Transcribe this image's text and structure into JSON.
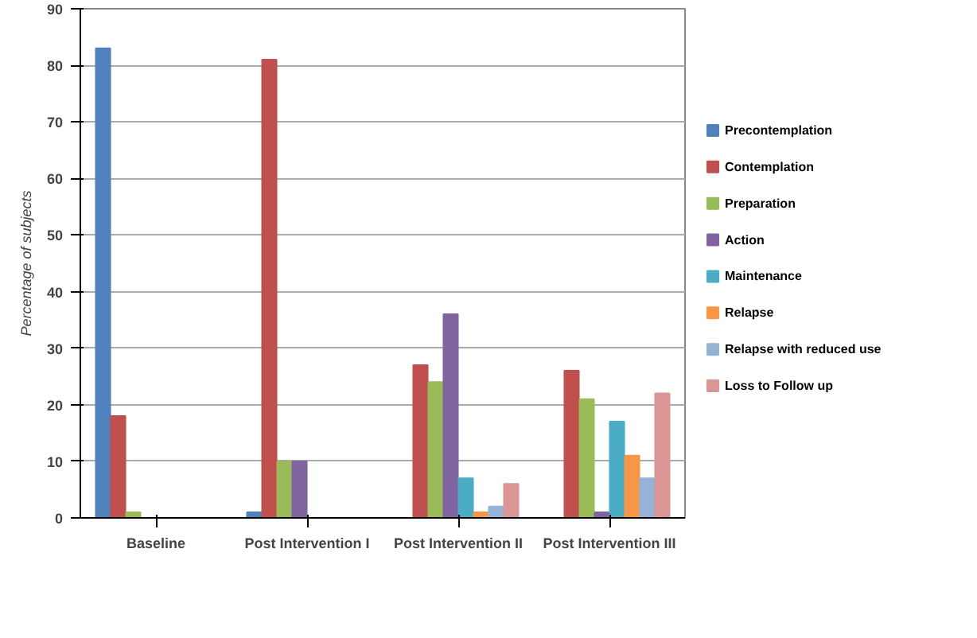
{
  "chart_data": {
    "type": "bar",
    "ylabel": "Percentage of subjects",
    "categories": [
      "Baseline",
      "Post Intervention I",
      "Post Intervention II",
      "Post Intervention III"
    ],
    "series": [
      {
        "name": "Precontemplation",
        "color": "#4f81bd",
        "values": [
          83,
          1,
          0,
          0
        ]
      },
      {
        "name": "Contemplation",
        "color": "#c0504d",
        "values": [
          18,
          81,
          27,
          26
        ]
      },
      {
        "name": "Preparation",
        "color": "#9bbb59",
        "values": [
          1,
          10,
          24,
          21
        ]
      },
      {
        "name": "Action",
        "color": "#8064a2",
        "values": [
          0,
          10,
          36,
          1
        ]
      },
      {
        "name": "Maintenance",
        "color": "#4bacc6",
        "values": [
          0,
          0,
          7,
          17
        ]
      },
      {
        "name": "Relapse",
        "color": "#f79646",
        "values": [
          0,
          0,
          1,
          11
        ]
      },
      {
        "name": "Relapse with reduced use",
        "color": "#95b3d7",
        "values": [
          0,
          0,
          2,
          7
        ]
      },
      {
        "name": "Loss to Follow up",
        "color": "#d99694",
        "values": [
          0,
          0,
          6,
          22
        ]
      }
    ],
    "ylim": [
      0,
      90
    ],
    "yticks": [
      0,
      10,
      20,
      30,
      40,
      50,
      60,
      70,
      80,
      90
    ],
    "grid": "y",
    "legend": "right"
  }
}
